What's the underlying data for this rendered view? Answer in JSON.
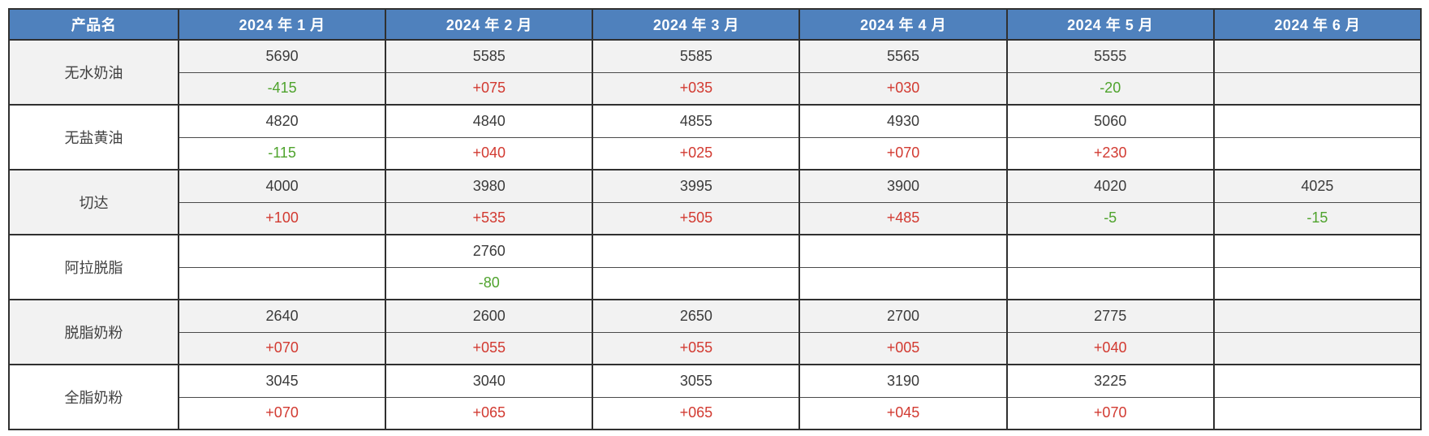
{
  "chart_data": {
    "type": "table",
    "columns": [
      "产品名",
      "2024 年 1 月",
      "2024 年 2 月",
      "2024 年 3 月",
      "2024 年 4 月",
      "2024 年 5 月",
      "2024 年 6 月"
    ],
    "row_format": [
      "price",
      "change"
    ],
    "rows": [
      {
        "name": "无水奶油",
        "values": [
          "5690",
          "5585",
          "5585",
          "5565",
          "5555",
          ""
        ],
        "changes": [
          "-415",
          "+075",
          "+035",
          "+030",
          "-20",
          ""
        ]
      },
      {
        "name": "无盐黄油",
        "values": [
          "4820",
          "4840",
          "4855",
          "4930",
          "5060",
          ""
        ],
        "changes": [
          "-115",
          "+040",
          "+025",
          "+070",
          "+230",
          ""
        ]
      },
      {
        "name": "切达",
        "values": [
          "4000",
          "3980",
          "3995",
          "3900",
          "4020",
          "4025"
        ],
        "changes": [
          "+100",
          "+535",
          "+505",
          "+485",
          "-5",
          "-15"
        ]
      },
      {
        "name": "阿拉脱脂",
        "values": [
          "",
          "2760",
          "",
          "",
          "",
          ""
        ],
        "changes": [
          "",
          "-80",
          "",
          "",
          "",
          ""
        ]
      },
      {
        "name": "脱脂奶粉",
        "values": [
          "2640",
          "2600",
          "2650",
          "2700",
          "2775",
          ""
        ],
        "changes": [
          "+070",
          "+055",
          "+055",
          "+005",
          "+040",
          ""
        ]
      },
      {
        "name": "全脂奶粉",
        "values": [
          "3045",
          "3040",
          "3055",
          "3190",
          "3225",
          ""
        ],
        "changes": [
          "+070",
          "+065",
          "+065",
          "+045",
          "+070",
          ""
        ]
      }
    ]
  },
  "colors": {
    "header_bg": "#4F81BD",
    "header_text": "#FFFFFF",
    "band_row_bg": "#F2F2F2",
    "plain_row_bg": "#FFFFFF",
    "change_up_red": "#D23A31",
    "change_down_green": "#4FA32D",
    "border": "#303030"
  }
}
